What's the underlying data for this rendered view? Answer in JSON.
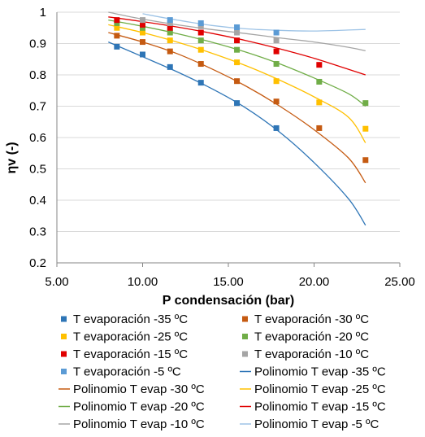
{
  "chart_data": {
    "type": "scatter",
    "xlabel": "P condensación (bar)",
    "ylabel": "ηv (-)",
    "xlim": [
      5,
      25
    ],
    "ylim": [
      0.2,
      1.0
    ],
    "xticks": [
      5,
      10,
      15,
      20,
      25
    ],
    "xtick_labels": [
      "5.00",
      "10.00",
      "15.00",
      "20.00",
      "25.00"
    ],
    "yticks": [
      0.2,
      0.3,
      0.4,
      0.5,
      0.6,
      0.7,
      0.8,
      0.9,
      1.0
    ],
    "ytick_labels": [
      "0.2",
      "0.3",
      "0.4",
      "0.5",
      "0.6",
      "0.7",
      "0.8",
      "0.9",
      "1"
    ],
    "grid": "horizontal",
    "legend_position": "bottom",
    "series": [
      {
        "name": "T evaporación -35 ºC",
        "kind": "points",
        "color": "#2e75b6",
        "points": [
          [
            8.5,
            0.89
          ],
          [
            10.0,
            0.865
          ],
          [
            11.6,
            0.825
          ],
          [
            13.4,
            0.775
          ],
          [
            15.5,
            0.71
          ],
          [
            17.8,
            0.63
          ]
        ]
      },
      {
        "name": "T evaporación -30 ºC",
        "kind": "points",
        "color": "#c55a11",
        "points": [
          [
            8.5,
            0.925
          ],
          [
            10.0,
            0.905
          ],
          [
            11.6,
            0.875
          ],
          [
            13.4,
            0.835
          ],
          [
            15.5,
            0.78
          ],
          [
            17.8,
            0.715
          ],
          [
            20.3,
            0.63
          ],
          [
            23.0,
            0.528
          ]
        ]
      },
      {
        "name": "T evaporación -25 ºC",
        "kind": "points",
        "color": "#ffc000",
        "points": [
          [
            8.5,
            0.95
          ],
          [
            10.0,
            0.935
          ],
          [
            11.6,
            0.91
          ],
          [
            13.4,
            0.88
          ],
          [
            15.5,
            0.84
          ],
          [
            17.8,
            0.78
          ],
          [
            20.3,
            0.712
          ],
          [
            23.0,
            0.628
          ]
        ]
      },
      {
        "name": "T evaporación -20 ºC",
        "kind": "points",
        "color": "#70ad47",
        "points": [
          [
            8.5,
            0.965
          ],
          [
            10.0,
            0.95
          ],
          [
            11.6,
            0.935
          ],
          [
            13.4,
            0.91
          ],
          [
            15.5,
            0.88
          ],
          [
            17.8,
            0.835
          ],
          [
            20.3,
            0.778
          ],
          [
            23.0,
            0.71
          ]
        ]
      },
      {
        "name": "T evaporación -15 ºC",
        "kind": "points",
        "color": "#e00000",
        "points": [
          [
            8.5,
            0.975
          ],
          [
            10.0,
            0.96
          ],
          [
            11.6,
            0.95
          ],
          [
            13.4,
            0.935
          ],
          [
            15.5,
            0.91
          ],
          [
            17.8,
            0.875
          ],
          [
            20.3,
            0.832
          ]
        ]
      },
      {
        "name": "T evaporación -10 ºC",
        "kind": "points",
        "color": "#a5a5a5",
        "points": [
          [
            10.0,
            0.975
          ],
          [
            11.6,
            0.965
          ],
          [
            13.4,
            0.955
          ],
          [
            15.5,
            0.935
          ],
          [
            17.8,
            0.91
          ]
        ]
      },
      {
        "name": "T evaporación -5 ºC",
        "kind": "points",
        "color": "#5b9bd5",
        "points": [
          [
            11.6,
            0.975
          ],
          [
            13.4,
            0.965
          ],
          [
            15.5,
            0.952
          ],
          [
            17.8,
            0.935
          ]
        ]
      },
      {
        "name": "Polinomio T evap -35 ºC",
        "kind": "line",
        "color": "#2e75b6",
        "points": [
          [
            8.0,
            0.905
          ],
          [
            10.0,
            0.858
          ],
          [
            12.0,
            0.81
          ],
          [
            14.0,
            0.757
          ],
          [
            16.0,
            0.695
          ],
          [
            18.0,
            0.617
          ],
          [
            20.0,
            0.52
          ],
          [
            22.0,
            0.405
          ],
          [
            23.0,
            0.32
          ]
        ]
      },
      {
        "name": "Polinomio T evap -30 ºC",
        "kind": "line",
        "color": "#c55a11",
        "points": [
          [
            8.0,
            0.935
          ],
          [
            10.0,
            0.905
          ],
          [
            12.0,
            0.868
          ],
          [
            14.0,
            0.82
          ],
          [
            16.0,
            0.765
          ],
          [
            18.0,
            0.7
          ],
          [
            20.0,
            0.625
          ],
          [
            22.0,
            0.535
          ],
          [
            23.0,
            0.455
          ]
        ]
      },
      {
        "name": "Polinomio T evap -25 ºC",
        "kind": "line",
        "color": "#ffc000",
        "points": [
          [
            8.0,
            0.96
          ],
          [
            10.0,
            0.935
          ],
          [
            12.0,
            0.905
          ],
          [
            14.0,
            0.87
          ],
          [
            16.0,
            0.83
          ],
          [
            18.0,
            0.783
          ],
          [
            20.0,
            0.73
          ],
          [
            22.0,
            0.665
          ],
          [
            23.0,
            0.583
          ]
        ]
      },
      {
        "name": "Polinomio T evap -20 ºC",
        "kind": "line",
        "color": "#70ad47",
        "points": [
          [
            8.0,
            0.975
          ],
          [
            10.0,
            0.955
          ],
          [
            12.0,
            0.932
          ],
          [
            14.0,
            0.905
          ],
          [
            16.0,
            0.873
          ],
          [
            18.0,
            0.835
          ],
          [
            20.0,
            0.79
          ],
          [
            22.0,
            0.74
          ],
          [
            23.0,
            0.7
          ]
        ]
      },
      {
        "name": "Polinomio T evap -15 ºC",
        "kind": "line",
        "color": "#e00000",
        "points": [
          [
            8.0,
            0.985
          ],
          [
            10.0,
            0.97
          ],
          [
            12.0,
            0.953
          ],
          [
            14.0,
            0.933
          ],
          [
            16.0,
            0.91
          ],
          [
            18.0,
            0.883
          ],
          [
            20.0,
            0.853
          ],
          [
            22.0,
            0.818
          ],
          [
            23.0,
            0.8
          ]
        ]
      },
      {
        "name": "Polinomio T evap -10 ºC",
        "kind": "line",
        "color": "#a5a5a5",
        "points": [
          [
            8.0,
            1.0
          ],
          [
            10.0,
            0.978
          ],
          [
            12.0,
            0.96
          ],
          [
            14.0,
            0.945
          ],
          [
            16.0,
            0.932
          ],
          [
            18.0,
            0.918
          ],
          [
            20.0,
            0.905
          ],
          [
            22.0,
            0.888
          ],
          [
            23.0,
            0.877
          ]
        ]
      },
      {
        "name": "Polinomio T evap -5 ºC",
        "kind": "line",
        "color": "#9dc3e6",
        "points": [
          [
            10.0,
            0.995
          ],
          [
            12.0,
            0.975
          ],
          [
            14.0,
            0.958
          ],
          [
            16.0,
            0.947
          ],
          [
            18.0,
            0.942
          ],
          [
            20.0,
            0.94
          ],
          [
            22.0,
            0.943
          ],
          [
            23.0,
            0.945
          ]
        ]
      }
    ]
  }
}
